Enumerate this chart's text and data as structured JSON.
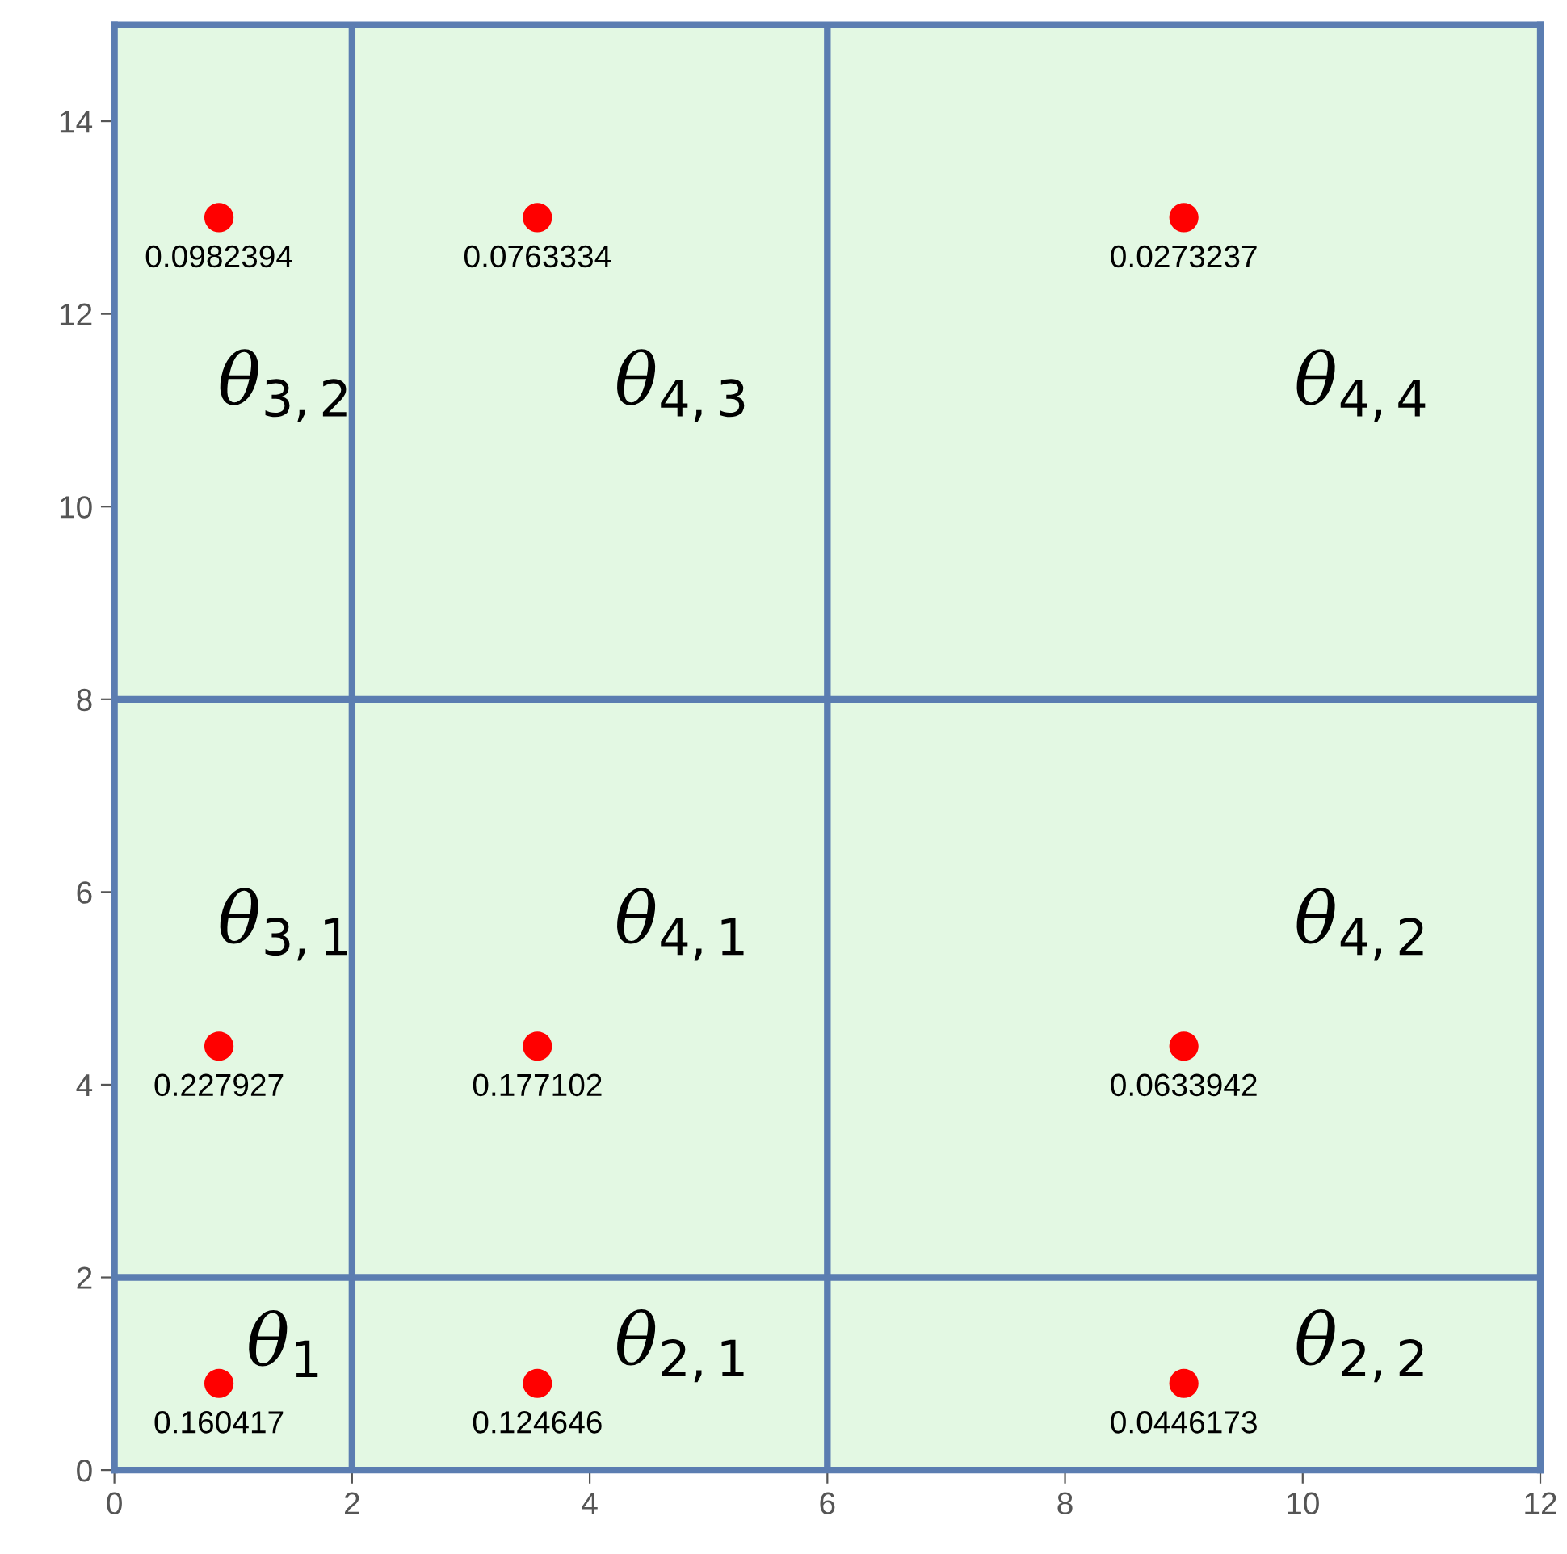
{
  "chart_data": {
    "type": "scatter",
    "series": [
      {
        "name": "θ$_{1}$",
        "x": [
          0.88
        ],
        "values": [
          0.9
        ],
        "color": "#ff0000"
      },
      {
        "name": "θ$_{2,1}$",
        "x": [
          3.56
        ],
        "values": [
          0.9
        ],
        "color": "#ff0000"
      },
      {
        "name": "θ$_{2,2}$",
        "x": [
          9.0
        ],
        "values": [
          0.9
        ],
        "color": "#ff0000"
      },
      {
        "name": "θ$_{3,1}$",
        "x": [
          0.88
        ],
        "values": [
          4.4
        ],
        "color": "#ff0000"
      },
      {
        "name": "θ$_{4,1}$",
        "x": [
          3.56
        ],
        "values": [
          4.4
        ],
        "color": "#ff0000"
      },
      {
        "name": "θ$_{4,2}$",
        "x": [
          9.0
        ],
        "values": [
          4.4
        ],
        "color": "#ff0000"
      },
      {
        "name": "θ$_{3,2}$",
        "x": [
          0.88
        ],
        "values": [
          13.0
        ],
        "color": "#ff0000"
      },
      {
        "name": "θ$_{4,3}$",
        "x": [
          3.56
        ],
        "values": [
          13.0
        ],
        "color": "#ff0000"
      },
      {
        "name": "θ$_{4,4}$",
        "x": [
          9.0
        ],
        "values": [
          13.0
        ],
        "color": "#ff0000"
      }
    ],
    "marker": "circle",
    "xlim": [
      0,
      12
    ],
    "xticks": [
      0,
      2,
      4,
      6,
      8,
      10,
      12
    ],
    "ylim": [
      0,
      15
    ],
    "yticks": [
      0,
      2,
      4,
      6,
      8,
      10,
      12,
      14
    ],
    "legend": false,
    "ref_lines": [
      {
        "axis": "x",
        "value": 2,
        "color": "#5b7db1"
      },
      {
        "axis": "x",
        "value": 6,
        "color": "#5b7db1"
      },
      {
        "axis": "y",
        "value": 2,
        "color": "#5b7db1"
      },
      {
        "axis": "y",
        "value": 8,
        "color": "#5b7db1"
      }
    ],
    "annotations": [
      {
        "text": "0.160417",
        "x": 0.88,
        "y": 0.9
      },
      {
        "text": "0.124646",
        "x": 3.56,
        "y": 0.9
      },
      {
        "text": "0.0446173",
        "x": 9.0,
        "y": 0.9
      },
      {
        "text": "0.227927",
        "x": 0.88,
        "y": 4.4
      },
      {
        "text": "0.177102",
        "x": 3.56,
        "y": 4.4
      },
      {
        "text": "0.0633942",
        "x": 9.0,
        "y": 4.4
      },
      {
        "text": "0.0982394",
        "x": 0.88,
        "y": 13.0
      },
      {
        "text": "0.0763334",
        "x": 3.56,
        "y": 13.0
      },
      {
        "text": "0.0273237",
        "x": 9.0,
        "y": 13.0
      }
    ]
  }
}
